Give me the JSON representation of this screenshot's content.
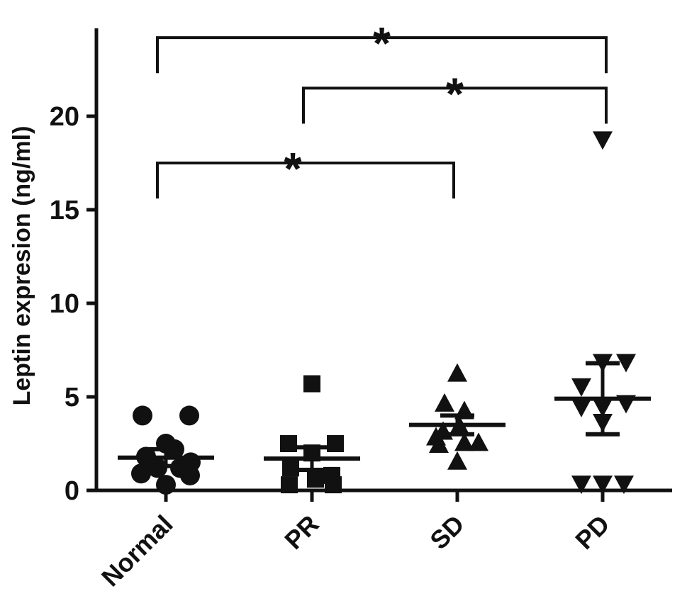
{
  "chart_data": {
    "type": "scatter",
    "ylabel": "Leptin expresion  (ng/ml)",
    "xlabel": "",
    "ylim": [
      0,
      24
    ],
    "yticks": [
      0,
      5,
      10,
      15,
      20
    ],
    "categories": [
      "Normal",
      "PR",
      "SD",
      "PD"
    ],
    "series": [
      {
        "category": "Normal",
        "marker": "circle",
        "values": [
          4.0,
          4.0,
          2.5,
          2.2,
          1.8,
          1.5,
          1.2,
          1.2,
          0.9,
          0.8,
          0.3
        ],
        "mean": 1.75,
        "sem_upper": 2.2,
        "sem_lower": 1.3
      },
      {
        "category": "PR",
        "marker": "square",
        "values": [
          5.7,
          2.5,
          2.5,
          2.0,
          1.2,
          0.8,
          0.6,
          0.3,
          0.3
        ],
        "mean": 1.7,
        "sem_upper": 2.3,
        "sem_lower": 1.1
      },
      {
        "category": "SD",
        "marker": "triangle-up",
        "values": [
          6.3,
          4.7,
          4.3,
          3.5,
          3.2,
          2.9,
          2.6,
          2.6,
          2.5,
          1.6
        ],
        "mean": 3.5,
        "sem_upper": 4.0,
        "sem_lower": 3.0
      },
      {
        "category": "PD",
        "marker": "triangle-down",
        "values": [
          18.7,
          6.8,
          6.8,
          5.5,
          4.6,
          4.4,
          4.4,
          3.6,
          0.3,
          0.3,
          0.3
        ],
        "mean": 4.9,
        "sem_upper": 6.8,
        "sem_lower": 3.0
      }
    ],
    "significance": [
      {
        "from": "Normal",
        "to": "PD",
        "label": "*",
        "level": 24.2
      },
      {
        "from": "PR",
        "to": "PD",
        "label": "*",
        "level": 21.5
      },
      {
        "from": "Normal",
        "to": "SD",
        "label": "*",
        "level": 17.5
      }
    ]
  }
}
